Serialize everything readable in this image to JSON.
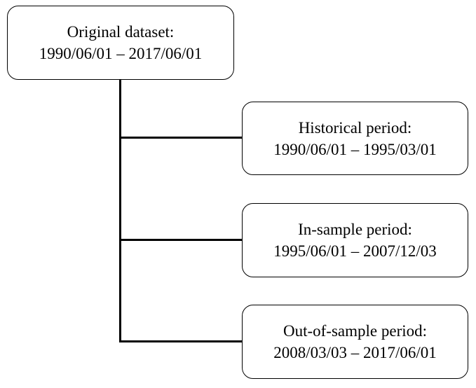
{
  "root": {
    "title": "Original dataset:",
    "range": "1990/06/01 – 2017/06/01"
  },
  "children": [
    {
      "title": "Historical period:",
      "range": "1990/06/01 – 1995/03/01"
    },
    {
      "title": "In-sample period:",
      "range": "1995/06/01 – 2007/12/03"
    },
    {
      "title": "Out-of-sample period:",
      "range": "2008/03/03 – 2017/06/01"
    }
  ]
}
